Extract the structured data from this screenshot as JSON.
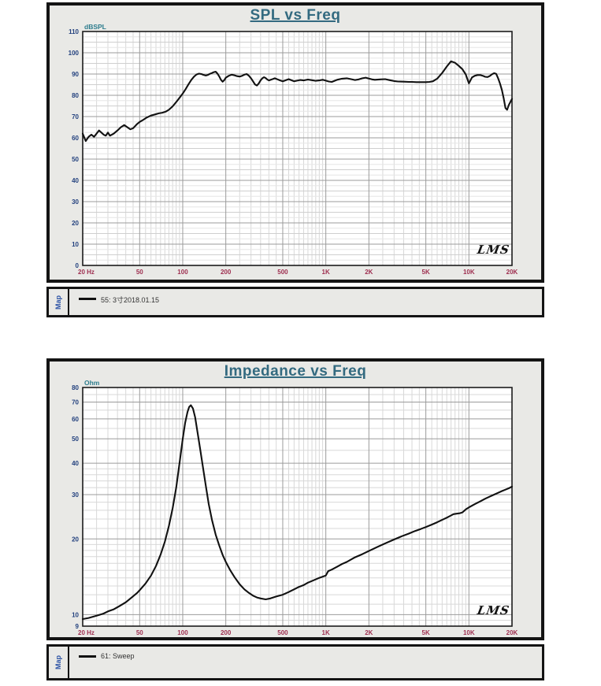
{
  "colors": {
    "title": "#336a80",
    "unit_label": "#2e7d8e",
    "y_tick": "#23417e",
    "x_tick": "#9e2f50",
    "map_label": "#2b52a5",
    "curve": "#111111",
    "grid_major": "#9b9b9b",
    "grid_minor": "#d8d8d8",
    "grid_sub": "#e6e6e6",
    "plot_bg": "#ffffff",
    "panel_bg": "#e9e9e6",
    "panel_border": "#141414"
  },
  "panels": [
    {
      "title": "SPL vs Freq",
      "unit_label": "dBSPL",
      "map_label": "Map",
      "legend_label": "55: 3寸2018.01.15",
      "logo": "LMS"
    },
    {
      "title": "Impedance vs Freq",
      "unit_label": "Ohm",
      "map_label": "Map",
      "legend_label": "61: Sweep",
      "logo": "LMS"
    }
  ],
  "chart_data": [
    {
      "type": "line",
      "title": "SPL vs Freq",
      "xlabel": "Hz",
      "ylabel": "dBSPL",
      "x_scale": "log",
      "y_scale": "linear",
      "xlim": [
        20,
        20000
      ],
      "ylim": [
        0,
        110
      ],
      "grid": true,
      "legend_position": "bottom-strip",
      "x_ticks": [
        "20 Hz",
        "50",
        "100",
        "200",
        "500",
        "1K",
        "2K",
        "5K",
        "10K",
        "20K"
      ],
      "x_tick_values": [
        20,
        50,
        100,
        200,
        500,
        1000,
        2000,
        5000,
        10000,
        20000
      ],
      "y_ticks": [
        0,
        10,
        20,
        30,
        40,
        50,
        60,
        70,
        80,
        90,
        100,
        110
      ],
      "series": [
        {
          "name": "55: 3寸2018.01.15",
          "x": [
            20,
            21,
            22,
            23,
            24,
            25,
            26,
            27,
            28,
            29,
            30,
            31,
            33,
            35,
            37,
            39,
            41,
            43,
            45,
            48,
            50,
            53,
            56,
            60,
            64,
            68,
            72,
            76,
            80,
            85,
            90,
            95,
            100,
            105,
            110,
            115,
            120,
            125,
            130,
            135,
            140,
            145,
            150,
            155,
            160,
            165,
            170,
            175,
            180,
            185,
            190,
            195,
            200,
            210,
            220,
            230,
            240,
            250,
            260,
            270,
            280,
            290,
            300,
            310,
            320,
            330,
            340,
            350,
            360,
            370,
            380,
            390,
            400,
            420,
            440,
            460,
            480,
            500,
            520,
            550,
            580,
            600,
            630,
            660,
            700,
            750,
            800,
            850,
            900,
            950,
            1000,
            1050,
            1100,
            1150,
            1200,
            1300,
            1400,
            1500,
            1600,
            1700,
            1800,
            1900,
            2000,
            2100,
            2200,
            2400,
            2600,
            2800,
            3000,
            3200,
            3500,
            3800,
            4000,
            4300,
            4600,
            5000,
            5300,
            5600,
            6000,
            6500,
            7000,
            7500,
            8000,
            8500,
            9000,
            9500,
            10000,
            10500,
            11000,
            11500,
            12000,
            12500,
            13000,
            13500,
            14000,
            14500,
            15000,
            15500,
            16000,
            16500,
            17000,
            17500,
            18000,
            18500,
            19000,
            20000
          ],
          "y": [
            62,
            58.5,
            60.5,
            61.5,
            60.5,
            62,
            63.5,
            62.5,
            61.5,
            61,
            62.5,
            61,
            62,
            63.5,
            65,
            66,
            65,
            64,
            64.5,
            66.5,
            67.5,
            68.5,
            69.5,
            70.5,
            71,
            71.5,
            71.8,
            72.3,
            73.2,
            74.8,
            76.8,
            78.8,
            80.8,
            83,
            85.3,
            87.3,
            88.8,
            89.8,
            90.2,
            90,
            89.6,
            89.3,
            89.6,
            90.1,
            90.5,
            90.9,
            91.1,
            90.2,
            88.8,
            87.3,
            86.4,
            87.1,
            88.3,
            89.2,
            89.7,
            89.4,
            89,
            88.8,
            89.2,
            89.7,
            90,
            89.2,
            88,
            86.6,
            85.1,
            84.6,
            85.6,
            87,
            88,
            88.5,
            88.1,
            87.4,
            87,
            87.5,
            88,
            87.5,
            87,
            86.6,
            87,
            87.6,
            87,
            86.6,
            86.9,
            87.2,
            87,
            87.4,
            87.1,
            86.8,
            87,
            87.3,
            86.9,
            86.5,
            86.3,
            86.8,
            87.3,
            87.8,
            88,
            87.6,
            87.2,
            87.5,
            88,
            88.3,
            87.9,
            87.5,
            87.3,
            87.5,
            87.6,
            87.1,
            86.7,
            86.5,
            86.4,
            86.3,
            86.3,
            86.2,
            86.2,
            86.2,
            86.3,
            86.6,
            87.8,
            90.5,
            93.5,
            96,
            95.3,
            93.8,
            92.3,
            89.8,
            85.6,
            88.4,
            89.2,
            89.5,
            89.5,
            89.2,
            88.7,
            88.6,
            89.1,
            89.9,
            90.4,
            90.1,
            88,
            85.5,
            82.5,
            78.5,
            74,
            73.2,
            75.5,
            78.3
          ]
        }
      ]
    },
    {
      "type": "line",
      "title": "Impedance vs Freq",
      "xlabel": "Hz",
      "ylabel": "Ohm",
      "x_scale": "log",
      "y_scale": "log",
      "xlim": [
        20,
        20000
      ],
      "ylim": [
        9,
        80
      ],
      "grid": true,
      "legend_position": "bottom-strip",
      "x_ticks": [
        "20 Hz",
        "50",
        "100",
        "200",
        "500",
        "1K",
        "2K",
        "5K",
        "10K",
        "20K"
      ],
      "x_tick_values": [
        20,
        50,
        100,
        200,
        500,
        1000,
        2000,
        5000,
        10000,
        20000
      ],
      "y_ticks": [
        9,
        10,
        20,
        30,
        40,
        50,
        60,
        70,
        80
      ],
      "series": [
        {
          "name": "61: Sweep",
          "x": [
            20,
            22,
            25,
            28,
            30,
            33,
            36,
            40,
            44,
            48,
            50,
            55,
            60,
            65,
            70,
            75,
            80,
            85,
            90,
            95,
            100,
            104,
            108,
            111,
            114,
            118,
            122,
            127,
            132,
            138,
            145,
            152,
            160,
            170,
            180,
            190,
            200,
            215,
            230,
            250,
            270,
            290,
            310,
            330,
            350,
            380,
            410,
            450,
            500,
            550,
            600,
            650,
            700,
            750,
            800,
            900,
            1000,
            1040,
            1100,
            1200,
            1300,
            1400,
            1600,
            1800,
            2000,
            2300,
            2600,
            3000,
            3400,
            3800,
            4200,
            4600,
            5000,
            5500,
            6000,
            6500,
            7000,
            7400,
            7800,
            8200,
            8600,
            9000,
            9500,
            10000,
            11000,
            12000,
            13000,
            14000,
            15000,
            16000,
            17000,
            18000,
            19000,
            20000
          ],
          "y": [
            9.6,
            9.7,
            9.9,
            10.1,
            10.3,
            10.5,
            10.8,
            11.2,
            11.7,
            12.2,
            12.5,
            13.3,
            14.3,
            15.6,
            17.3,
            19.5,
            22.5,
            26.5,
            32,
            40,
            50,
            58,
            64,
            67,
            68,
            66,
            61,
            53,
            46,
            39,
            32.5,
            27.5,
            23.8,
            20.8,
            18.8,
            17.3,
            16.2,
            15,
            14.1,
            13.2,
            12.6,
            12.2,
            11.9,
            11.7,
            11.6,
            11.5,
            11.6,
            11.8,
            12,
            12.3,
            12.6,
            12.9,
            13.1,
            13.4,
            13.6,
            14,
            14.3,
            14.9,
            15.1,
            15.5,
            15.9,
            16.2,
            16.9,
            17.4,
            17.9,
            18.6,
            19.2,
            19.9,
            20.5,
            21,
            21.5,
            21.9,
            22.3,
            22.8,
            23.3,
            23.8,
            24.3,
            24.7,
            25.1,
            25.2,
            25.3,
            25.5,
            26.2,
            26.7,
            27.5,
            28.2,
            28.9,
            29.5,
            30,
            30.5,
            31,
            31.4,
            31.8,
            32.3
          ]
        }
      ]
    }
  ]
}
